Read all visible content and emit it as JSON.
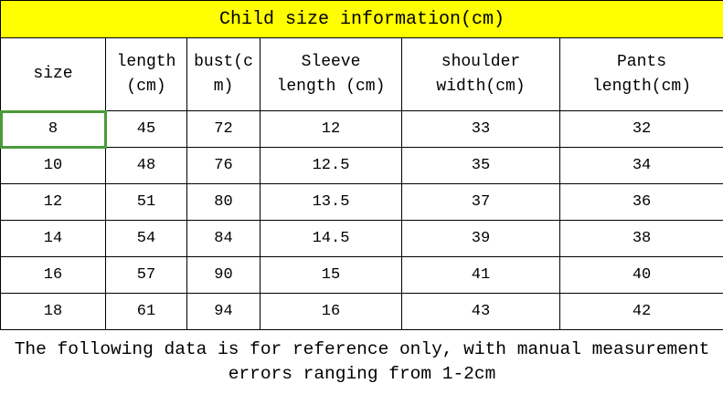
{
  "title": "Child size information(cm)",
  "table": {
    "header": [
      "size",
      "length\n(cm)",
      "bust(c\nm)",
      "Sleeve\nlength (cm)",
      "shoulder\nwidth(cm)",
      "Pants\nlength(cm)"
    ],
    "rows": [
      [
        8,
        45,
        72,
        12,
        33,
        32
      ],
      [
        10,
        48,
        76,
        12.5,
        35,
        34
      ],
      [
        12,
        51,
        80,
        13.5,
        37,
        36
      ],
      [
        14,
        54,
        84,
        14.5,
        39,
        38
      ],
      [
        16,
        57,
        90,
        15,
        41,
        40
      ],
      [
        18,
        61,
        94,
        16,
        43,
        42
      ]
    ]
  },
  "footer": "The following data is for reference only, with manual measurement errors ranging from 1-2cm"
}
